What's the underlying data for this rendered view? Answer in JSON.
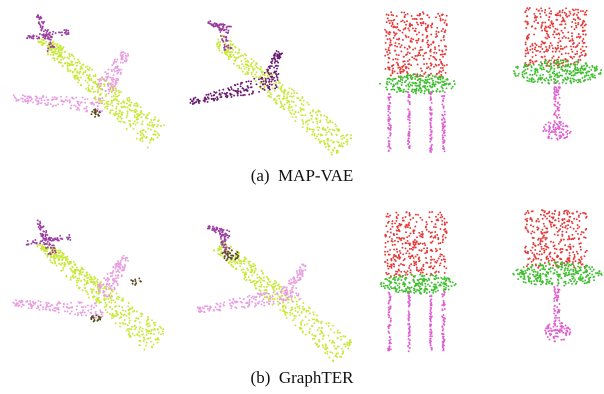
{
  "figure": {
    "rows": [
      {
        "caption": "(a)  MAP-VAE",
        "objects": [
          {
            "category": "airplane",
            "part_colors": {
              "body": "#c8e83a",
              "wings": "#e89ee0",
              "tail": "#9a3fa0",
              "engines": "#5a4a20"
            }
          },
          {
            "category": "airplane",
            "part_colors": {
              "body": "#c8e83a",
              "wings": "#6a1a6e",
              "tail": "#9a3fa0"
            }
          },
          {
            "category": "chair",
            "part_colors": {
              "back": "#e43a3a",
              "seat": "#3fbf2f",
              "legs": "#e060d0"
            }
          },
          {
            "category": "chair",
            "part_colors": {
              "back": "#e43a3a",
              "seat": "#3fbf2f",
              "base": "#e060d0"
            }
          }
        ]
      },
      {
        "caption": "(b)  GraphTER",
        "objects": [
          {
            "category": "airplane",
            "part_colors": {
              "body": "#c8e83a",
              "wings": "#e89ee0",
              "tail": "#9a3fa0",
              "engines": "#5a4a20"
            }
          },
          {
            "category": "airplane",
            "part_colors": {
              "body": "#c8e83a",
              "wings": "#e89ee0",
              "tail": "#9a3fa0",
              "engines": "#5a4a20"
            }
          },
          {
            "category": "chair",
            "part_colors": {
              "back": "#e43a3a",
              "seat": "#3fbf2f",
              "legs": "#e060d0"
            }
          },
          {
            "category": "chair",
            "part_colors": {
              "back": "#e43a3a",
              "seat": "#3fbf2f",
              "base": "#e060d0"
            }
          }
        ]
      }
    ]
  }
}
